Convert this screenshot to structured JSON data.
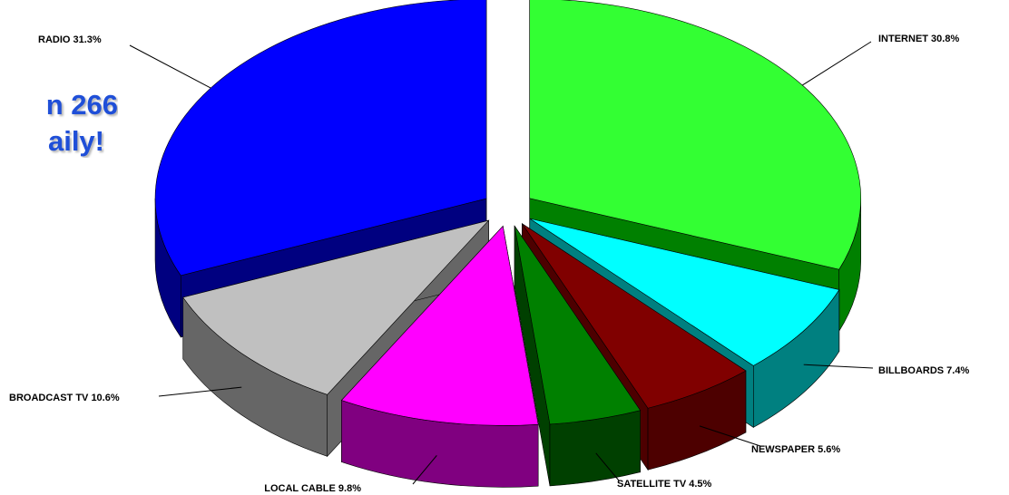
{
  "headline": [
    "n 266",
    "aily!"
  ],
  "chart_data": {
    "type": "pie",
    "style": "3d-exploded",
    "title": "",
    "slices": [
      {
        "label": "INTERNET 30.8%",
        "category": "INTERNET",
        "value": 30.8,
        "top": "#33ff33",
        "side": "#008000"
      },
      {
        "label": "BILLBOARDS 7.4%",
        "category": "BILLBOARDS",
        "value": 7.4,
        "top": "#00ffff",
        "side": "#008080"
      },
      {
        "label": "NEWSPAPER 5.6%",
        "category": "NEWSPAPER",
        "value": 5.6,
        "top": "#800000",
        "side": "#4d0000"
      },
      {
        "label": "SATELLITE TV 4.5%",
        "category": "SATELLITE TV",
        "value": 4.5,
        "top": "#008000",
        "side": "#004000"
      },
      {
        "label": "LOCAL CABLE 9.8%",
        "category": "LOCAL CABLE",
        "value": 9.8,
        "top": "#ff00ff",
        "side": "#800080"
      },
      {
        "label": "BROADCAST TV 10.6%",
        "category": "BROADCAST TV",
        "value": 10.6,
        "top": "#c0c0c0",
        "side": "#666666"
      },
      {
        "label": "RADIO 31.3%",
        "category": "RADIO",
        "value": 31.3,
        "top": "#0000ff",
        "side": "#000080"
      }
    ]
  }
}
